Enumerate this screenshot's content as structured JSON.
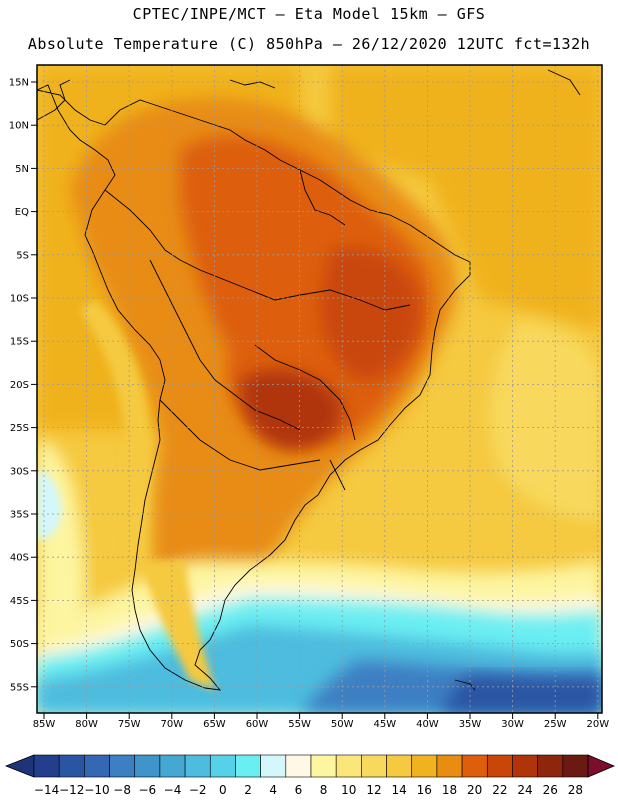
{
  "header": {
    "line1": "CPTEC/INPE/MCT –  Eta Model 15km – GFS",
    "line2": "Absolute Temperature (C) 850hPa – 26/12/2020 12UTC fct=132h"
  },
  "axes": {
    "lat_labels": [
      "15N",
      "10N",
      "5N",
      "EQ",
      "5S",
      "10S",
      "15S",
      "20S",
      "25S",
      "30S",
      "35S",
      "40S",
      "45S",
      "50S",
      "55S"
    ],
    "lon_labels": [
      "85W",
      "80W",
      "75W",
      "70W",
      "65W",
      "60W",
      "55W",
      "50W",
      "45W",
      "40W",
      "35W",
      "30W",
      "25W",
      "20W"
    ]
  },
  "colorbar": {
    "labels": [
      "-14",
      "-12",
      "-10",
      "-8",
      "-6",
      "-4",
      "-2",
      "0",
      "2",
      "4",
      "6",
      "8",
      "10",
      "12",
      "14",
      "16",
      "18",
      "20",
      "22",
      "24",
      "26",
      "28"
    ],
    "colors": [
      "#233e8a",
      "#2a55a3",
      "#3468b4",
      "#3c7fc2",
      "#3f95c9",
      "#45a8d3",
      "#4dbcde",
      "#56d2e8",
      "#6aeef2",
      "#d3f7fb",
      "#fff8e4",
      "#fdf5a0",
      "#fbe67a",
      "#f8d95d",
      "#f5c940",
      "#f0b21f",
      "#e88c12",
      "#dd5f0b",
      "#c94608",
      "#b03409",
      "#8e260d",
      "#6a1a10"
    ],
    "lower_arrow_color": "#1e3478",
    "upper_arrow_color": "#7a0e2b"
  },
  "map": {
    "frame_color": "#000000",
    "grid_color": "#9a9a9a"
  }
}
